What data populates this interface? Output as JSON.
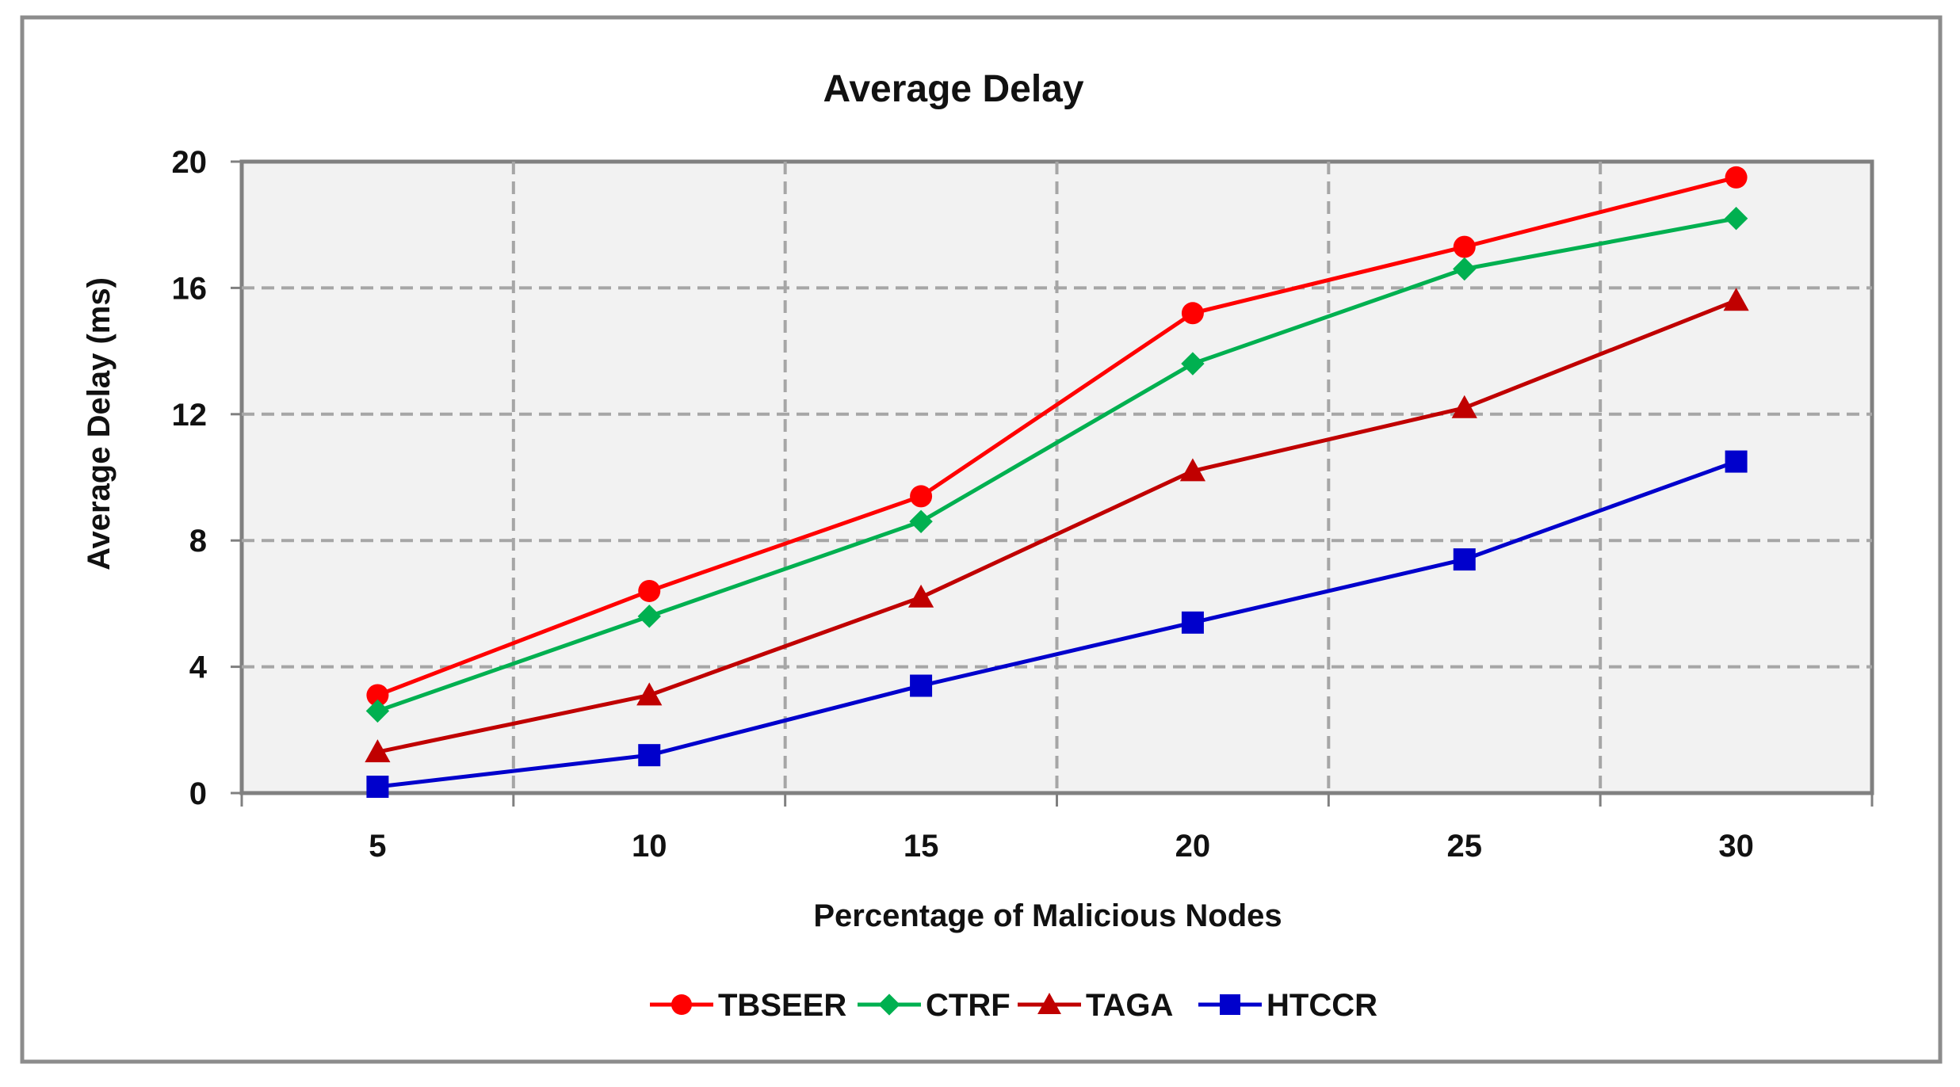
{
  "chart_data": {
    "type": "line",
    "title": "Average Delay",
    "xlabel": "Percentage of Malicious Nodes",
    "ylabel": "Average Delay (ms)",
    "categories": [
      "5",
      "10",
      "15",
      "20",
      "25",
      "30"
    ],
    "y_ticks": [
      "0",
      "4",
      "8",
      "12",
      "16",
      "20"
    ],
    "ylim": [
      0,
      20
    ],
    "grid": true,
    "legend_position": "bottom",
    "series": [
      {
        "name": "TBSEER",
        "color": "#ff0000",
        "marker": "circle",
        "values": [
          3.1,
          6.4,
          9.4,
          15.2,
          17.3,
          19.5
        ]
      },
      {
        "name": "CTRF",
        "color": "#00b050",
        "marker": "diamond",
        "values": [
          2.6,
          5.6,
          8.6,
          13.6,
          16.6,
          18.2
        ]
      },
      {
        "name": "TAGA",
        "color": "#c00000",
        "marker": "triangle",
        "values": [
          1.3,
          3.1,
          6.2,
          10.2,
          12.2,
          15.6
        ]
      },
      {
        "name": "HTCCR",
        "color": "#0000cc",
        "marker": "square",
        "values": [
          0.2,
          1.2,
          3.4,
          5.4,
          7.4,
          10.5
        ]
      }
    ]
  }
}
